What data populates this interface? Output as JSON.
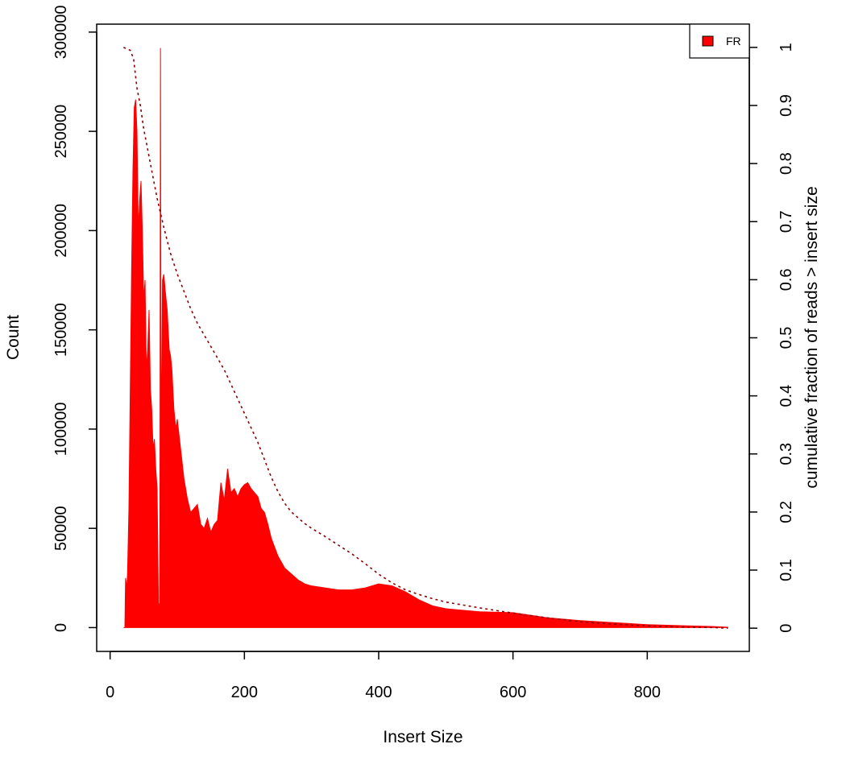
{
  "chart_data": {
    "type": "area",
    "xlabel": "Insert Size",
    "ylabel": "Count",
    "y2label": "cumulative fraction of reads > insert size",
    "xlim": [
      -20,
      952
    ],
    "ylim": [
      -12000,
      304000
    ],
    "y2lim": [
      -0.04,
      1.04
    ],
    "x_ticks": [
      0,
      200,
      400,
      600,
      800
    ],
    "y_ticks": [
      0,
      50000,
      100000,
      150000,
      200000,
      250000,
      300000
    ],
    "y2_ticks": [
      0,
      0.1,
      0.2,
      0.3,
      0.4,
      0.5,
      0.6,
      0.7,
      0.8,
      0.9,
      1
    ],
    "y2_tick_labels": [
      "0",
      "0.1",
      "0.2",
      "0.3",
      "0.4",
      "0.5",
      "0.6",
      "0.7",
      "0.8",
      "0.9",
      "1"
    ],
    "legend": {
      "position": "top-right",
      "entries": [
        {
          "label": "FR",
          "color": "#ff0000"
        }
      ]
    },
    "series": [
      {
        "name": "FR",
        "kind": "histogram",
        "color": "#ff0000",
        "x": [
          20,
          22,
          23,
          25,
          26,
          28,
          30,
          32,
          34,
          36,
          38,
          40,
          42,
          44,
          46,
          48,
          50,
          52,
          54,
          56,
          58,
          60,
          62,
          64,
          66,
          68,
          70,
          72,
          74,
          75,
          76,
          78,
          80,
          82,
          85,
          88,
          90,
          92,
          95,
          98,
          100,
          105,
          110,
          115,
          120,
          125,
          130,
          135,
          140,
          145,
          150,
          155,
          160,
          165,
          170,
          175,
          180,
          185,
          190,
          195,
          200,
          205,
          210,
          215,
          220,
          225,
          230,
          235,
          240,
          250,
          260,
          270,
          280,
          290,
          300,
          320,
          340,
          360,
          380,
          400,
          420,
          440,
          460,
          480,
          500,
          550,
          600,
          620,
          650,
          700,
          750,
          800,
          850,
          900,
          920
        ],
        "y": [
          0,
          0,
          25000,
          20000,
          28000,
          60000,
          120000,
          180000,
          230000,
          262000,
          266000,
          250000,
          200000,
          215000,
          225000,
          200000,
          165000,
          175000,
          130000,
          140000,
          160000,
          120000,
          110000,
          90000,
          95000,
          80000,
          70000,
          12000,
          12000,
          292000,
          80000,
          175000,
          178000,
          170000,
          160000,
          140000,
          137000,
          130000,
          110000,
          100000,
          105000,
          90000,
          75000,
          65000,
          58000,
          60000,
          62000,
          52000,
          50000,
          55000,
          48000,
          52000,
          54000,
          73000,
          64000,
          80000,
          68000,
          70000,
          66000,
          70000,
          72000,
          73000,
          70000,
          68000,
          66000,
          60000,
          58000,
          52000,
          45000,
          36000,
          30000,
          27000,
          24000,
          22000,
          21000,
          20000,
          19000,
          19000,
          20000,
          22000,
          21000,
          18000,
          14000,
          11000,
          9500,
          8000,
          7500,
          6500,
          5000,
          3500,
          2500,
          1500,
          1000,
          500,
          200
        ]
      },
      {
        "name": "",
        "kind": "cumulative",
        "color": "#8b0000",
        "x": [
          20,
          30,
          35,
          40,
          45,
          50,
          60,
          70,
          80,
          90,
          100,
          110,
          120,
          130,
          140,
          150,
          160,
          170,
          180,
          190,
          200,
          210,
          220,
          230,
          240,
          250,
          260,
          270,
          280,
          290,
          300,
          320,
          340,
          360,
          380,
          400,
          420,
          440,
          460,
          480,
          500,
          550,
          600,
          650,
          700,
          750,
          800,
          850,
          900,
          920
        ],
        "y": [
          1.0,
          0.995,
          0.98,
          0.93,
          0.9,
          0.86,
          0.8,
          0.74,
          0.69,
          0.645,
          0.61,
          0.58,
          0.55,
          0.525,
          0.505,
          0.485,
          0.465,
          0.445,
          0.42,
          0.395,
          0.37,
          0.345,
          0.32,
          0.29,
          0.26,
          0.235,
          0.215,
          0.2,
          0.19,
          0.18,
          0.172,
          0.158,
          0.143,
          0.128,
          0.111,
          0.093,
          0.078,
          0.066,
          0.058,
          0.051,
          0.045,
          0.035,
          0.026,
          0.018,
          0.011,
          0.007,
          0.004,
          0.002,
          0.001,
          0
        ]
      }
    ]
  }
}
